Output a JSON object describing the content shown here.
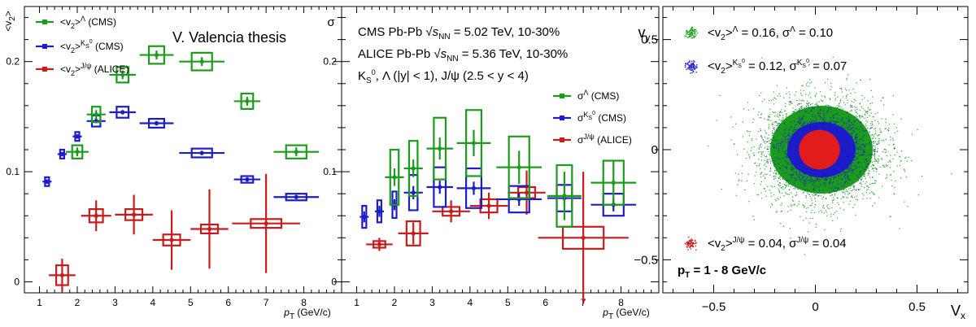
{
  "chart_data": [
    {
      "type": "scatter",
      "panel": "v2",
      "ylabel": "<v2>",
      "xlabel": "pT (GeV/c)",
      "xlim": [
        0.6,
        9.0
      ],
      "ylim": [
        -0.01,
        0.25
      ],
      "xticks": [
        "1",
        "2",
        "3",
        "4",
        "5",
        "6",
        "7",
        "8"
      ],
      "yticks": [
        "0",
        "0.1",
        "0.2"
      ],
      "watermark": "V. Valencia thesis",
      "legend": [
        "<v2>Λ (CMS)",
        "<v2>KS0 (CMS)",
        "<v2>J/ψ (ALICE)"
      ],
      "series": [
        {
          "name": "Lambda CMS",
          "color": "#1c9c1c",
          "x": [
            2.0,
            2.5,
            3.2,
            4.1,
            5.3,
            6.5,
            7.8
          ],
          "y": [
            0.118,
            0.152,
            0.188,
            0.206,
            0.2,
            0.164,
            0.118
          ]
        },
        {
          "name": "K0S CMS",
          "color": "#1c1cc8",
          "x": [
            1.2,
            1.6,
            2.0,
            2.5,
            3.2,
            4.1,
            5.3,
            6.5,
            7.8
          ],
          "y": [
            0.091,
            0.116,
            0.132,
            0.146,
            0.154,
            0.144,
            0.117,
            0.093,
            0.077
          ]
        },
        {
          "name": "Jpsi ALICE",
          "color": "#c81c1c",
          "x": [
            1.6,
            2.5,
            3.5,
            4.5,
            5.5,
            7.0
          ],
          "y": [
            0.006,
            0.06,
            0.061,
            0.038,
            0.048,
            0.053
          ]
        }
      ]
    },
    {
      "type": "scatter",
      "panel": "sigma",
      "ylabel": "σ",
      "xlabel": "pT (GeV/c)",
      "xlim": [
        0.6,
        9.0
      ],
      "ylim": [
        -0.01,
        0.25
      ],
      "xticks": [
        "1",
        "2",
        "3",
        "4",
        "5",
        "6",
        "7",
        "8"
      ],
      "yticks": [
        "0",
        "0.1",
        "0.2"
      ],
      "annotations": [
        "CMS Pb-Pb √sNN = 5.02 TeV, 10-30%",
        "ALICE Pb-Pb √sNN = 5.36 TeV, 10-30%",
        "KS0, Λ (|y| < 1), J/ψ (2.5 < y < 4)"
      ],
      "legend": [
        "σΛ (CMS)",
        "σKS0 (CMS)",
        "σJ/ψ (ALICE)"
      ],
      "series": [
        {
          "name": "Lambda CMS",
          "color": "#1c9c1c",
          "x": [
            2.0,
            2.5,
            3.2,
            4.1,
            5.3,
            6.5,
            7.8
          ],
          "y": [
            0.095,
            0.103,
            0.121,
            0.126,
            0.104,
            0.078,
            0.09
          ]
        },
        {
          "name": "K0S CMS",
          "color": "#1c1cc8",
          "x": [
            1.2,
            1.6,
            2.0,
            2.5,
            3.2,
            4.1,
            5.3,
            6.5,
            7.8
          ],
          "y": [
            0.059,
            0.064,
            0.07,
            0.081,
            0.086,
            0.085,
            0.075,
            0.076,
            0.07
          ]
        },
        {
          "name": "Jpsi ALICE",
          "color": "#c81c1c",
          "x": [
            1.6,
            2.5,
            3.5,
            4.5,
            5.5,
            7.0
          ],
          "y": [
            0.034,
            0.044,
            0.064,
            0.069,
            0.081,
            0.04
          ]
        }
      ]
    },
    {
      "type": "scatter",
      "panel": "velocity-distribution",
      "xlabel": "vx",
      "ylabel": "vy",
      "xlim": [
        -0.75,
        0.75
      ],
      "ylim": [
        -0.65,
        0.65
      ],
      "xticks": [
        "-0.5",
        "0",
        "0.5"
      ],
      "yticks": [
        "-0.5",
        "0",
        "0.5"
      ],
      "legend": [
        {
          "label": "<v2>Λ = 0.16,   σΛ = 0.10",
          "color": "#1c9c1c",
          "v2": 0.16,
          "sigma": 0.1
        },
        {
          "label": "<v2>KS0 = 0.12,   σKS0 = 0.07",
          "color": "#1c1cc8",
          "v2": 0.12,
          "sigma": 0.07
        },
        {
          "label": "<v2>J/ψ = 0.04,   σJ/ψ = 0.04",
          "color": "#c81c1c",
          "v2": 0.04,
          "sigma": 0.04
        }
      ],
      "note": "pT = 1 - 8 GeV/c"
    }
  ]
}
